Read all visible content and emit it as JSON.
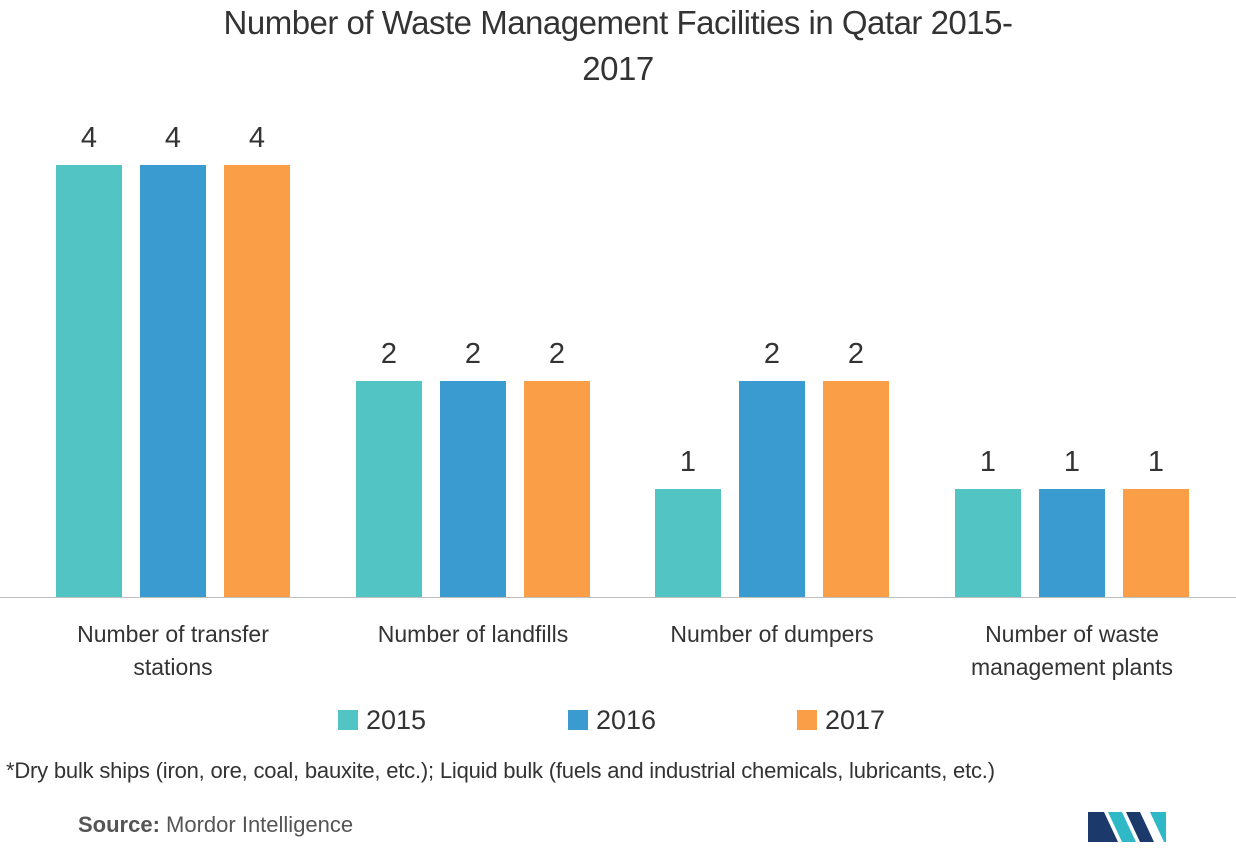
{
  "chart_data": {
    "type": "bar",
    "title_lines": [
      "Number of Waste Management Facilities in Qatar 2015-",
      "2017"
    ],
    "categories": [
      [
        "Number of transfer",
        "stations"
      ],
      [
        "Number of landfills"
      ],
      [
        "Number of dumpers"
      ],
      [
        "Number of waste",
        "management plants"
      ]
    ],
    "series": [
      {
        "name": "2015",
        "color": "#53C4C4",
        "values": [
          4,
          2,
          1,
          1
        ]
      },
      {
        "name": "2016",
        "color": "#3A9BD0",
        "values": [
          4,
          2,
          2,
          1
        ]
      },
      {
        "name": "2017",
        "color": "#FA9F48",
        "values": [
          4,
          2,
          2,
          1
        ]
      }
    ],
    "data_labels": true,
    "ylim": [
      0,
      4
    ],
    "grid": false,
    "legend_position": "bottom-center"
  },
  "footnote": "*Dry bulk ships (iron, ore, coal, bauxite, etc.); Liquid bulk (fuels and industrial chemicals, lubricants, etc.)",
  "source": {
    "label": "Source:",
    "value": " Mordor Intelligence"
  },
  "logo": {
    "icon": "mordor-intelligence-logo",
    "colors": [
      "#1B3A6B",
      "#2FB8C6"
    ]
  }
}
